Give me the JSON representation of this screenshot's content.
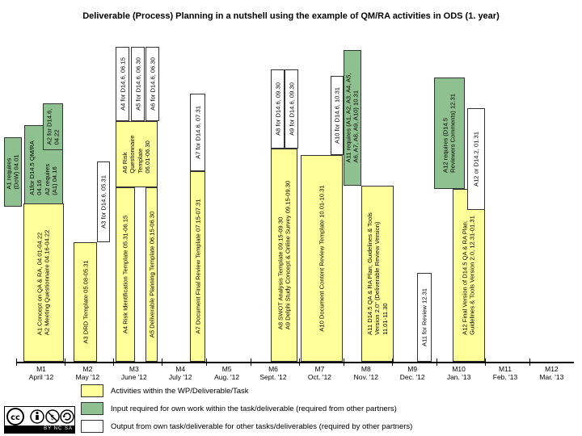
{
  "title": "Deliverable (Process) Planning in a nutshell using the example of QM/RA activities in ODS (1. year)",
  "colors": {
    "activity": "#ffff99",
    "input": "#8fc08f",
    "output": "#ffffff"
  },
  "boxes": {
    "a1_input": [
      "A1 requires",
      "(DoW) 04.01"
    ],
    "a1_output": [
      "A1for D14.5 QM/RA",
      "04.16",
      "A2 requires",
      "(A1) 04.16"
    ],
    "a2_output": [
      "A2 for D14.6,",
      "04.22"
    ],
    "m1_activity": [
      "A1 Concept on QA & RA, 04.01-04.22",
      "A2 Meeting Questionnaire 04.16-04.22"
    ],
    "m2_activity": [
      "A3 DRD Template 05.08-05.31"
    ],
    "a3_output": [
      "A3 for D14.6, 05.31"
    ],
    "m3_activity_a": [
      "A4 Risk Identification Template 05.31-06.15"
    ],
    "a6_activity": [
      "A6 Risk",
      "Questionnaire",
      "Template",
      "06.01-06.30"
    ],
    "m3_activity_b": [
      "A5 Deliverable Planning Template 06.15-06.30"
    ],
    "a4_output": [
      "A4 for D14.6, 06.15"
    ],
    "a5_output": [
      "A5 for D14.6, 06.30"
    ],
    "a6_output": [
      "A6 for D14.6, 06.30"
    ],
    "a7_activity": [
      "A7 Document Final Review Template 07.15-07.31"
    ],
    "a7_output": [
      "A7 for D14.6, 07.31"
    ],
    "a8_activity": [
      "A8 SWOT Analysis Template 09.15-09.30",
      "A9 Delphi Study Concept & Online Survey 09.15-09.30"
    ],
    "a8_output": [
      "A8 for D14.6, 09.30"
    ],
    "a9_output": [
      "A9 for D14.6, 09.30"
    ],
    "a10_activity": [
      "A10 Document Content Review Template 10.01-10.31"
    ],
    "a10_output": [
      "A10 for D14.6, 10.31"
    ],
    "a11_input": [
      "A11 requires (A1, A2, A3, A4, A5,",
      "A6, A7, A8, A9, A10) 10.31"
    ],
    "a11_activity": [
      "A11 D14.5 QA & RA Plan; Guidelines & Tools",
      "Version 2.0\" (Deliverable Review Version)",
      "11.01-11.30"
    ],
    "a11_output": [
      "A11 for Review 12.31"
    ],
    "a12_input": [
      "A12 requires (D14.5",
      "Reviewers Comments) 12.31"
    ],
    "a12_activity": [
      "A12 Final Version of D14.5 QA & RA Plan;",
      "Guidelines & Tools Version 2.0, 12.31-01.31"
    ],
    "a12_output": [
      "A12 or D14.2, 01.31"
    ]
  },
  "months": [
    {
      "code": "M1",
      "label": "April '12"
    },
    {
      "code": "M2",
      "label": "May '12"
    },
    {
      "code": "M3",
      "label": "June '12"
    },
    {
      "code": "M4",
      "label": "July '12"
    },
    {
      "code": "M5",
      "label": "Aug. '12"
    },
    {
      "code": "M6",
      "label": "Sept. '12"
    },
    {
      "code": "M7",
      "label": "Oct. '12"
    },
    {
      "code": "M8",
      "label": "Nov. '12"
    },
    {
      "code": "M9",
      "label": "Dec. '12"
    },
    {
      "code": "M10",
      "label": "Jan. '13"
    },
    {
      "code": "M11",
      "label": "Feb. '13"
    },
    {
      "code": "M12",
      "label": "Mar. '13"
    }
  ],
  "legend": {
    "activity": "Activities within the WP/Deliverable/Task",
    "input": "Input required for own work within the task/deliverable (required from other partners)",
    "output": "Output from own task/deliverable for other tasks/deliverables (required by other partners)"
  },
  "license": {
    "logo": "cc",
    "badges": [
      "BY",
      "NC",
      "SA"
    ]
  }
}
